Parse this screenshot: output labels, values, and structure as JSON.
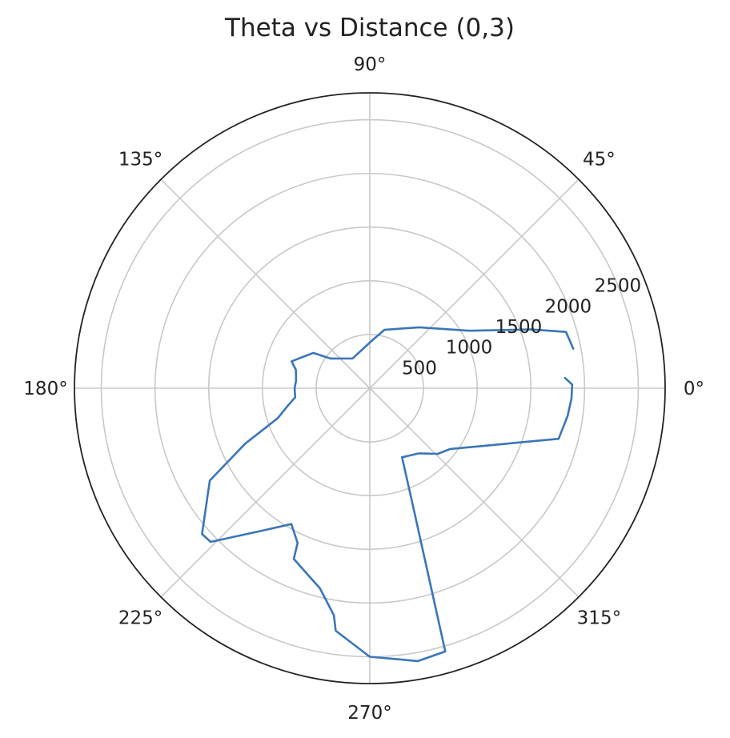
{
  "chart_data": {
    "type": "line",
    "projection": "polar",
    "title": "Theta vs Distance (0,3)",
    "theta_unit": "degrees",
    "angle_tick_labels": [
      "0°",
      "45°",
      "90°",
      "135°",
      "180°",
      "225°",
      "270°",
      "315°"
    ],
    "angle_ticks": [
      0,
      45,
      90,
      135,
      180,
      225,
      270,
      315
    ],
    "radial_tick_labels": [
      "500",
      "1000",
      "1500",
      "2000",
      "2500"
    ],
    "radial_ticks": [
      500,
      1000,
      1500,
      2000,
      2500
    ],
    "rlim": [
      0,
      2750
    ],
    "grid": true,
    "colors": {
      "series": "#3a76b8"
    },
    "series": [
      {
        "points": [
          [
            3,
            1820
          ],
          [
            1,
            1885
          ],
          [
            -3,
            1880
          ],
          [
            -8,
            1860
          ],
          [
            -15,
            1820
          ],
          [
            -37,
            940
          ],
          [
            -44,
            880
          ],
          [
            -53,
            760
          ],
          [
            -65,
            710
          ],
          [
            -70,
            1190
          ],
          [
            -74,
            2550
          ],
          [
            -80,
            2580
          ],
          [
            -90,
            2500
          ],
          [
            -98,
            2280
          ],
          [
            -99,
            2140
          ],
          [
            -104,
            1920
          ],
          [
            -114,
            1740
          ],
          [
            -115,
            1590
          ],
          [
            -120,
            1460
          ],
          [
            -127,
            1660
          ],
          [
            -136,
            2060
          ],
          [
            -139,
            2070
          ],
          [
            -150,
            1720
          ],
          [
            -156,
            1270
          ],
          [
            -162,
            900
          ],
          [
            -168,
            780
          ],
          [
            -173,
            700
          ],
          [
            -180,
            700
          ],
          [
            174,
            690
          ],
          [
            166,
            710
          ],
          [
            161,
            770
          ],
          [
            148,
            620
          ],
          [
            143,
            460
          ],
          [
            120,
            320
          ],
          [
            88,
            440
          ],
          [
            76,
            560
          ],
          [
            51,
            730
          ],
          [
            30,
            1070
          ],
          [
            20,
            1600
          ],
          [
            16,
            1900
          ],
          [
            11,
            1930
          ]
        ]
      }
    ]
  }
}
